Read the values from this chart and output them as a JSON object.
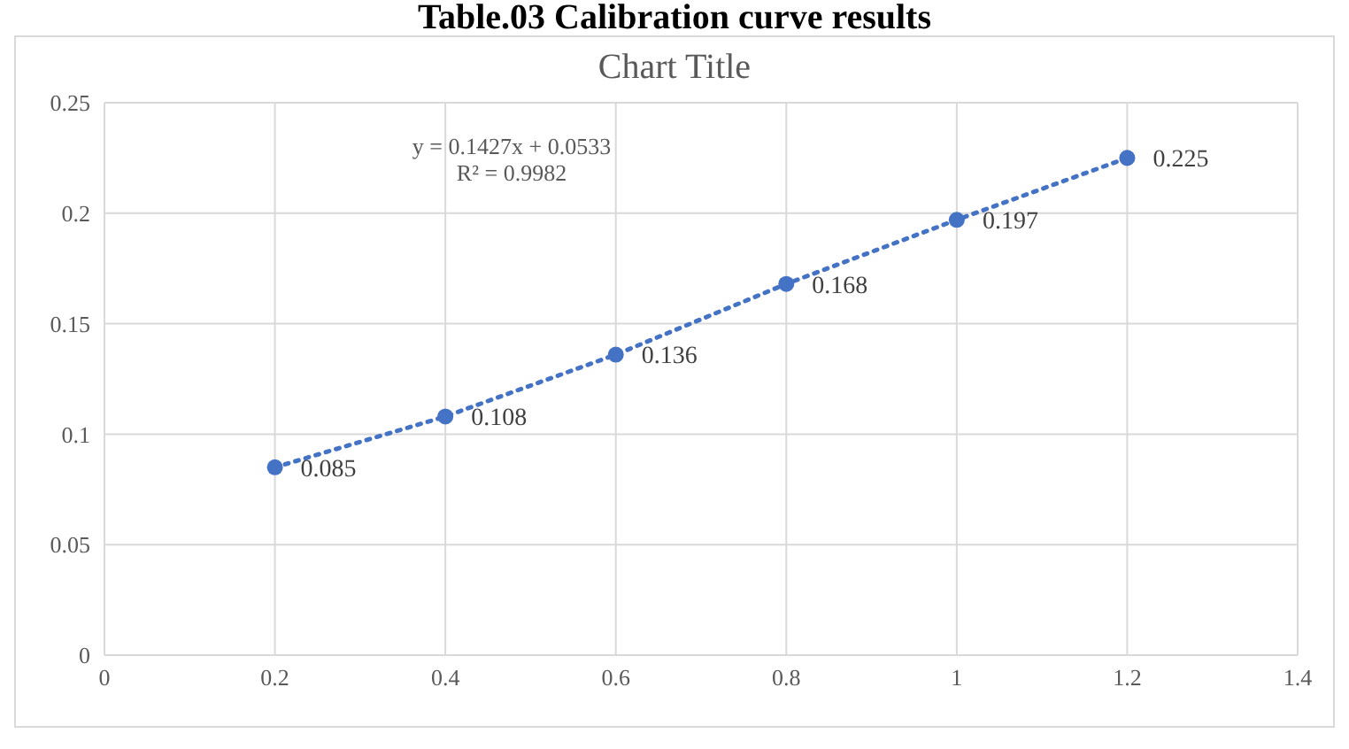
{
  "chart_data": {
    "type": "scatter",
    "title": "Table.03 Calibration curve results",
    "subtitle": "Chart Title",
    "x": [
      0.2,
      0.4,
      0.6,
      0.8,
      1,
      1.2
    ],
    "series": [
      {
        "color": "#4472c4",
        "values": [
          0.085,
          0.108,
          0.136,
          0.168,
          0.197,
          0.225
        ]
      }
    ],
    "xlim": [
      0,
      1.4
    ],
    "xticks": [
      0,
      0.2,
      0.4,
      0.6,
      0.8,
      1,
      1.2,
      1.4
    ],
    "ylim": [
      0,
      0.25
    ],
    "yticks": [
      0,
      0.05,
      0.1,
      0.15,
      0.2,
      0.25
    ],
    "annotations": [
      "y = 0.1427x + 0.0533",
      "R² = 0.9982"
    ],
    "data_labels": true,
    "grid": true,
    "marker": "circle",
    "line_style": "dotted",
    "legend": false
  }
}
